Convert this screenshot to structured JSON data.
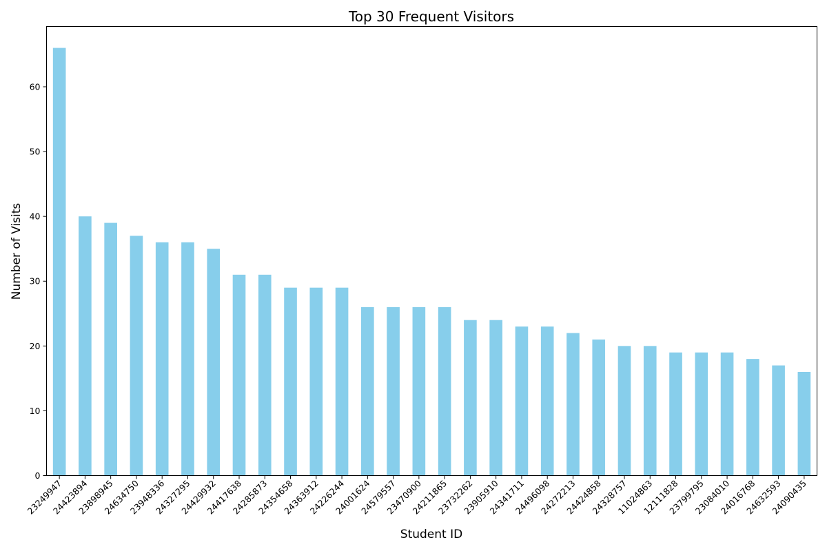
{
  "chart_data": {
    "type": "bar",
    "title": "Top 30 Frequent Visitors",
    "xlabel": "Student ID",
    "ylabel": "Number of Visits",
    "ylim": [
      0,
      69.3
    ],
    "yticks": [
      0,
      10,
      20,
      30,
      40,
      50,
      60
    ],
    "grid": false,
    "bar_color": "#87ceeb",
    "categories": [
      "23249947",
      "24423894",
      "23898945",
      "24634750",
      "23948336",
      "24327295",
      "24429932",
      "24417638",
      "24285873",
      "24354658",
      "24363912",
      "24226244",
      "24001624",
      "24579557",
      "23470900",
      "24211865",
      "23732262",
      "23905910",
      "24341711",
      "24496098",
      "24272213",
      "24424858",
      "24328757",
      "11024863",
      "12111828",
      "23799795",
      "23084010",
      "24016768",
      "24632593",
      "24090435"
    ],
    "values": [
      66,
      40,
      39,
      37,
      36,
      36,
      35,
      31,
      31,
      29,
      29,
      29,
      26,
      26,
      26,
      26,
      24,
      24,
      23,
      23,
      22,
      21,
      20,
      20,
      19,
      19,
      19,
      18,
      17,
      16
    ]
  }
}
